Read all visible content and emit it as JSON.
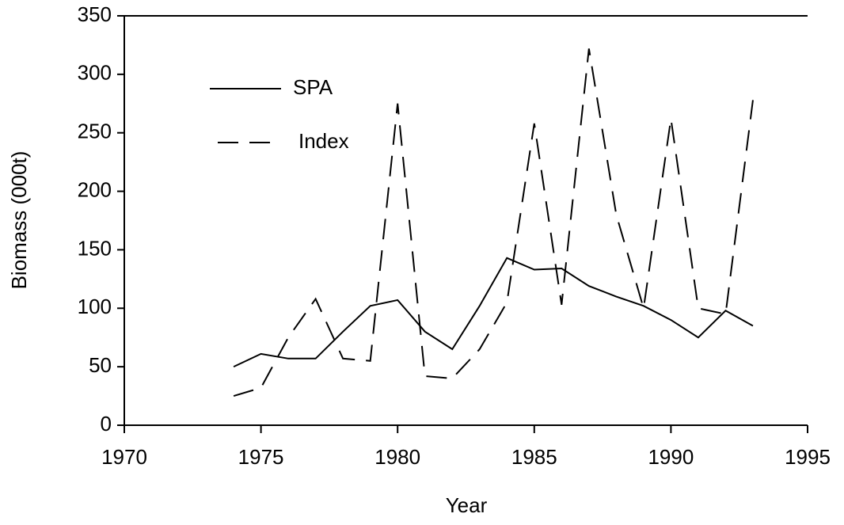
{
  "chart_data": {
    "type": "line",
    "xlabel": "Year",
    "ylabel": "Biomass (000t)",
    "x": [
      1974,
      1975,
      1976,
      1977,
      1978,
      1979,
      1980,
      1981,
      1982,
      1983,
      1984,
      1985,
      1986,
      1987,
      1988,
      1989,
      1990,
      1991,
      1992,
      1993
    ],
    "series": [
      {
        "name": "SPA",
        "color": "#000000",
        "dash": "solid",
        "values": [
          50,
          61,
          57,
          57,
          80,
          102,
          107,
          80,
          65,
          102,
          143,
          133,
          134,
          119,
          110,
          102,
          90,
          75,
          98,
          85
        ]
      },
      {
        "name": "Index",
        "color": "#000000",
        "dash": "dashed",
        "values": [
          25,
          32,
          75,
          108,
          57,
          55,
          275,
          42,
          40,
          65,
          105,
          258,
          103,
          322,
          180,
          100,
          262,
          100,
          95,
          278
        ]
      }
    ],
    "xlim": [
      1970,
      1995
    ],
    "xticks": [
      1970,
      1975,
      1980,
      1985,
      1990,
      1995
    ],
    "ylim": [
      0,
      350
    ],
    "yticks": [
      0,
      50,
      100,
      150,
      200,
      250,
      300,
      350
    ],
    "legend": "upper left"
  }
}
